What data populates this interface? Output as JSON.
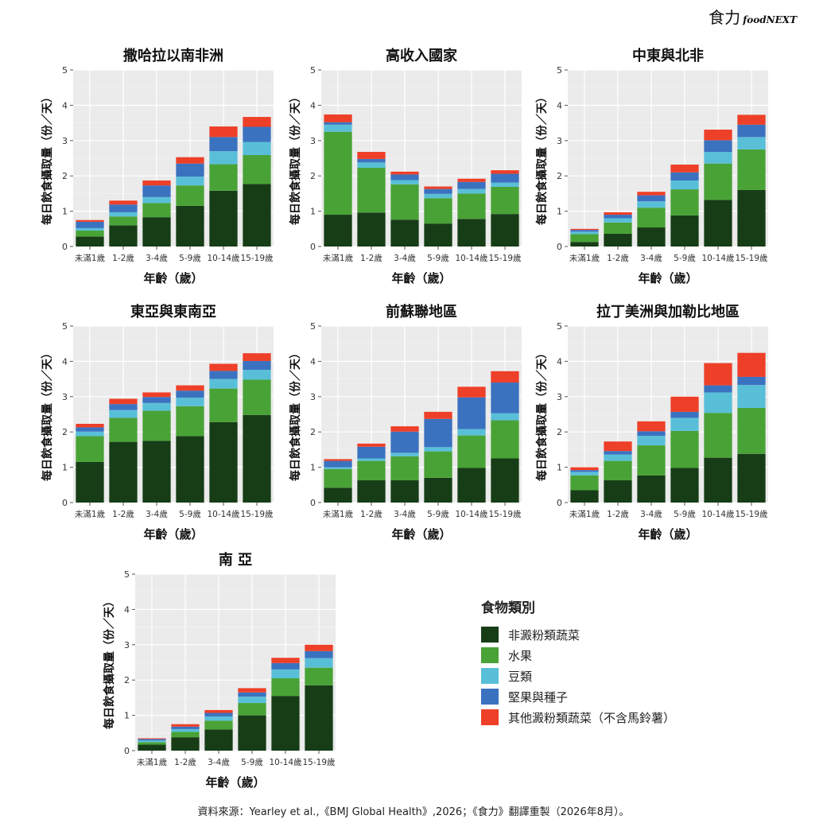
{
  "brand": {
    "zh": "食力",
    "en": "foodNEXT"
  },
  "legend": {
    "title": "食物類別",
    "items": [
      {
        "name": "非澱粉類蔬菜",
        "color": "#173d17"
      },
      {
        "name": "水果",
        "color": "#49a236"
      },
      {
        "name": "豆類",
        "color": "#59bfd8"
      },
      {
        "name": "堅果與種子",
        "color": "#3b72c0"
      },
      {
        "name": "其他澱粉類蔬菜（不含馬鈴薯）",
        "color": "#ee3f28"
      }
    ]
  },
  "source": "資料來源：Yearley et al.,《BMJ Global Health》,2026；《食力》翻譯重製（2026年8月）。",
  "chart_data": [
    {
      "type": "bar",
      "stacked": true,
      "title": "撒哈拉以南非洲",
      "xlabel": "年齡（歲）",
      "ylabel": "每日飲食攝取量（份／天）",
      "ylim": [
        0,
        5
      ],
      "yticks": [
        0,
        1,
        2,
        3,
        4,
        5
      ],
      "categories": [
        "未滿1歲",
        "1-2歲",
        "3-4歲",
        "5-9歲",
        "10-14歲",
        "15-19歲"
      ],
      "series": [
        {
          "name": "非澱粉類蔬菜",
          "values": [
            0.28,
            0.6,
            0.83,
            1.15,
            1.58,
            1.77
          ]
        },
        {
          "name": "水果",
          "values": [
            0.17,
            0.25,
            0.4,
            0.58,
            0.75,
            0.82
          ]
        },
        {
          "name": "豆類",
          "values": [
            0.07,
            0.12,
            0.17,
            0.25,
            0.37,
            0.37
          ]
        },
        {
          "name": "堅果與種子",
          "values": [
            0.18,
            0.22,
            0.33,
            0.37,
            0.4,
            0.43
          ]
        },
        {
          "name": "其他澱粉類蔬菜（不含馬鈴薯）",
          "values": [
            0.05,
            0.11,
            0.14,
            0.18,
            0.3,
            0.28
          ]
        }
      ]
    },
    {
      "type": "bar",
      "stacked": true,
      "title": "高收入國家",
      "xlabel": "年齡（歲）",
      "ylabel": "每日飲食攝取量（份／天）",
      "ylim": [
        0,
        5
      ],
      "yticks": [
        0,
        1,
        2,
        3,
        4,
        5
      ],
      "categories": [
        "未滿1歲",
        "1-2歲",
        "3-4歲",
        "5-9歲",
        "10-14歲",
        "15-19歲"
      ],
      "series": [
        {
          "name": "非澱粉類蔬菜",
          "values": [
            0.9,
            0.96,
            0.76,
            0.65,
            0.78,
            0.92
          ]
        },
        {
          "name": "水果",
          "values": [
            2.35,
            1.27,
            1.0,
            0.72,
            0.72,
            0.77
          ]
        },
        {
          "name": "豆類",
          "values": [
            0.2,
            0.15,
            0.12,
            0.12,
            0.13,
            0.12
          ]
        },
        {
          "name": "堅果與種子",
          "values": [
            0.07,
            0.1,
            0.16,
            0.14,
            0.2,
            0.25
          ]
        },
        {
          "name": "其他澱粉類蔬菜（不含馬鈴薯）",
          "values": [
            0.22,
            0.2,
            0.08,
            0.07,
            0.09,
            0.1
          ]
        }
      ]
    },
    {
      "type": "bar",
      "stacked": true,
      "title": "中東與北非",
      "xlabel": "年齡（歲）",
      "ylabel": "每日飲食攝取量（份／天）",
      "ylim": [
        0,
        5
      ],
      "yticks": [
        0,
        1,
        2,
        3,
        4,
        5
      ],
      "categories": [
        "未滿1歲",
        "1-2歲",
        "3-4歲",
        "5-9歲",
        "10-14歲",
        "15-19歲"
      ],
      "series": [
        {
          "name": "非澱粉類蔬菜",
          "values": [
            0.13,
            0.36,
            0.54,
            0.88,
            1.32,
            1.6
          ]
        },
        {
          "name": "水果",
          "values": [
            0.22,
            0.32,
            0.56,
            0.74,
            1.03,
            1.15
          ]
        },
        {
          "name": "豆類",
          "values": [
            0.07,
            0.12,
            0.18,
            0.25,
            0.33,
            0.35
          ]
        },
        {
          "name": "堅果與種子",
          "values": [
            0.05,
            0.1,
            0.17,
            0.23,
            0.33,
            0.35
          ]
        },
        {
          "name": "其他澱粉類蔬菜（不含馬鈴薯）",
          "values": [
            0.03,
            0.07,
            0.1,
            0.22,
            0.3,
            0.28
          ]
        }
      ]
    },
    {
      "type": "bar",
      "stacked": true,
      "title": "東亞與東南亞",
      "xlabel": "年齡（歲）",
      "ylabel": "每日飲食攝取量（份／天）",
      "ylim": [
        0,
        5
      ],
      "yticks": [
        0,
        1,
        2,
        3,
        4,
        5
      ],
      "categories": [
        "未滿1歲",
        "1-2歲",
        "3-4歲",
        "5-9歲",
        "10-14歲",
        "15-19歲"
      ],
      "series": [
        {
          "name": "非澱粉類蔬菜",
          "values": [
            1.15,
            1.72,
            1.75,
            1.88,
            2.28,
            2.48
          ]
        },
        {
          "name": "水果",
          "values": [
            0.73,
            0.68,
            0.85,
            0.85,
            0.95,
            1.0
          ]
        },
        {
          "name": "豆類",
          "values": [
            0.13,
            0.22,
            0.22,
            0.24,
            0.27,
            0.28
          ]
        },
        {
          "name": "堅果與種子",
          "values": [
            0.12,
            0.17,
            0.17,
            0.2,
            0.23,
            0.25
          ]
        },
        {
          "name": "其他澱粉類蔬菜（不含馬鈴薯）",
          "values": [
            0.1,
            0.15,
            0.13,
            0.15,
            0.2,
            0.22
          ]
        }
      ]
    },
    {
      "type": "bar",
      "stacked": true,
      "title": "前蘇聯地區",
      "xlabel": "年齡（歲）",
      "ylabel": "每日飲食攝取量（份／天）",
      "ylim": [
        0,
        5
      ],
      "yticks": [
        0,
        1,
        2,
        3,
        4,
        5
      ],
      "categories": [
        "未滿1歲",
        "1-2歲",
        "3-4歲",
        "5-9歲",
        "10-14歲",
        "15-19歲"
      ],
      "series": [
        {
          "name": "非澱粉類蔬菜",
          "values": [
            0.42,
            0.63,
            0.63,
            0.7,
            0.98,
            1.25
          ]
        },
        {
          "name": "水果",
          "values": [
            0.53,
            0.55,
            0.68,
            0.75,
            0.92,
            1.08
          ]
        },
        {
          "name": "豆類",
          "values": [
            0.05,
            0.07,
            0.1,
            0.12,
            0.18,
            0.2
          ]
        },
        {
          "name": "堅果與種子",
          "values": [
            0.18,
            0.33,
            0.6,
            0.8,
            0.9,
            0.87
          ]
        },
        {
          "name": "其他澱粉類蔬菜（不含馬鈴薯）",
          "values": [
            0.05,
            0.09,
            0.15,
            0.2,
            0.3,
            0.32
          ]
        }
      ]
    },
    {
      "type": "bar",
      "stacked": true,
      "title": "拉丁美洲與加勒比地區",
      "xlabel": "年齡（歲）",
      "ylabel": "每日飲食攝取量（份／天）",
      "ylim": [
        0,
        5
      ],
      "yticks": [
        0,
        1,
        2,
        3,
        4,
        5
      ],
      "categories": [
        "未滿1歲",
        "1-2歲",
        "3-4歲",
        "5-9歲",
        "10-14歲",
        "15-19歲"
      ],
      "series": [
        {
          "name": "非澱粉類蔬菜",
          "values": [
            0.35,
            0.63,
            0.77,
            0.98,
            1.27,
            1.38
          ]
        },
        {
          "name": "水果",
          "values": [
            0.42,
            0.55,
            0.85,
            1.05,
            1.27,
            1.3
          ]
        },
        {
          "name": "豆類",
          "values": [
            0.1,
            0.18,
            0.27,
            0.37,
            0.58,
            0.65
          ]
        },
        {
          "name": "堅果與種子",
          "values": [
            0.05,
            0.1,
            0.13,
            0.17,
            0.2,
            0.23
          ]
        },
        {
          "name": "其他澱粉類蔬菜（不含馬鈴薯）",
          "values": [
            0.08,
            0.27,
            0.28,
            0.43,
            0.63,
            0.68
          ]
        }
      ]
    },
    {
      "type": "bar",
      "stacked": true,
      "title": "南 亞",
      "xlabel": "年齡（歲）",
      "ylabel": "每日飲食攝取量（份／天）",
      "ylim": [
        0,
        5
      ],
      "yticks": [
        0,
        1,
        2,
        3,
        4,
        5
      ],
      "categories": [
        "未滿1歲",
        "1-2歲",
        "3-4歲",
        "5-9歲",
        "10-14歲",
        "15-19歲"
      ],
      "series": [
        {
          "name": "非澱粉類蔬菜",
          "values": [
            0.17,
            0.38,
            0.6,
            1.0,
            1.55,
            1.85
          ]
        },
        {
          "name": "水果",
          "values": [
            0.07,
            0.15,
            0.25,
            0.35,
            0.5,
            0.5
          ]
        },
        {
          "name": "豆類",
          "values": [
            0.05,
            0.08,
            0.12,
            0.18,
            0.25,
            0.27
          ]
        },
        {
          "name": "堅果與種子",
          "values": [
            0.04,
            0.07,
            0.1,
            0.12,
            0.18,
            0.2
          ]
        },
        {
          "name": "其他澱粉類蔬菜（不含馬鈴薯）",
          "values": [
            0.02,
            0.07,
            0.08,
            0.12,
            0.15,
            0.18
          ]
        }
      ]
    }
  ]
}
